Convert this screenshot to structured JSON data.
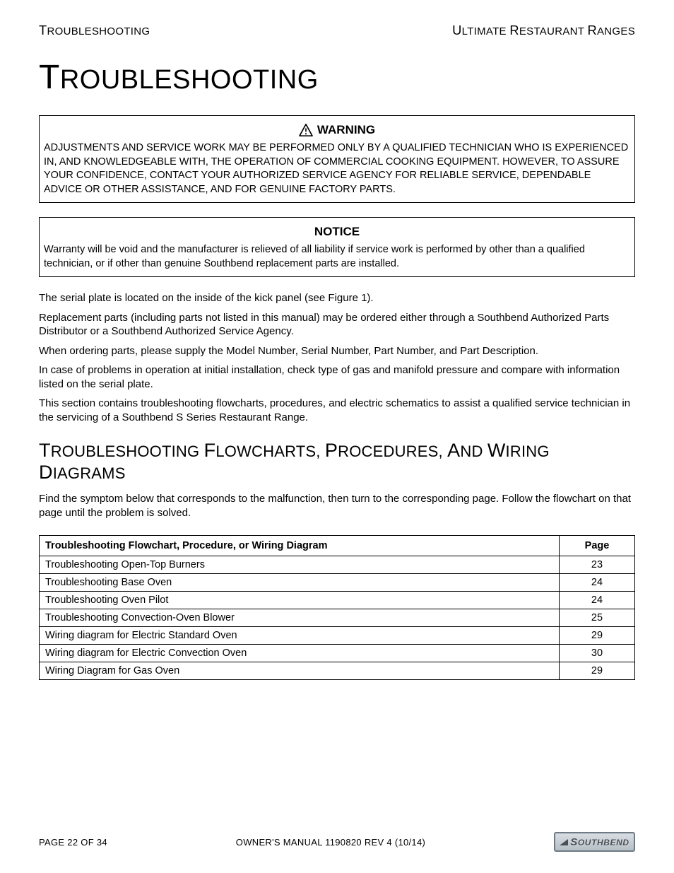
{
  "header": {
    "left": "TROUBLESHOOTING",
    "right": "ULTIMATE RESTAURANT RANGES"
  },
  "title": "TROUBLESHOOTING",
  "warning_box": {
    "title": "WARNING",
    "body": "ADJUSTMENTS AND SERVICE WORK MAY BE PERFORMED ONLY BY A QUALIFIED TECHNICIAN WHO IS EXPERIENCED IN, AND KNOWLEDGEABLE WITH, THE OPERATION OF COMMERCIAL COOKING EQUIPMENT. HOWEVER, TO ASSURE YOUR CONFIDENCE, CONTACT YOUR AUTHORIZED SERVICE AGENCY FOR RELIABLE SERVICE, DEPENDABLE ADVICE OR OTHER ASSISTANCE, AND FOR GENUINE FACTORY PARTS."
  },
  "notice_box": {
    "title": "NOTICE",
    "body": "Warranty will be void and the manufacturer is relieved of all liability if service work is performed by other than a qualified technician, or if other than genuine Southbend replacement parts are installed."
  },
  "paragraphs": [
    "The serial plate is located on the inside of the kick panel (see Figure 1).",
    "Replacement parts (including parts not listed in this manual) may be ordered either through a Southbend Authorized Parts Distributor or a Southbend Authorized Service Agency.",
    "When ordering parts, please supply the Model Number, Serial Number, Part Number, and Part Description.",
    "In case of problems in operation at initial installation, check type of gas and manifold pressure and compare with information listed on the serial plate.",
    "This section contains troubleshooting flowcharts, procedures, and electric schematics to assist a qualified service technician in the servicing of a Southbend S Series Restaurant Range."
  ],
  "section2": {
    "title_words": [
      "TROUBLESHOOTING",
      "FLOWCHARTS,",
      "PROCEDURES,",
      "AND",
      "WIRING",
      "DIAGRAMS"
    ],
    "intro": "Find the symptom below that corresponds to the malfunction, then turn to the corresponding page. Follow the flowchart on that page until the problem is solved."
  },
  "table": {
    "col1": "Troubleshooting Flowchart, Procedure, or Wiring Diagram",
    "col2": "Page",
    "rows": [
      {
        "label": "Troubleshooting Open-Top Burners",
        "page": "23"
      },
      {
        "label": "Troubleshooting Base Oven",
        "page": "24"
      },
      {
        "label": "Troubleshooting Oven Pilot",
        "page": "24"
      },
      {
        "label": "Troubleshooting Convection-Oven Blower",
        "page": "25"
      },
      {
        "label": "Wiring diagram for Electric Standard Oven",
        "page": "29"
      },
      {
        "label": "Wiring diagram for Electric Convection Oven",
        "page": "30"
      },
      {
        "label": "Wiring Diagram for Gas Oven",
        "page": "29"
      }
    ]
  },
  "footer": {
    "page_prefix": "PAGE",
    "page_current": "22",
    "page_mid": "OF",
    "page_total": "34",
    "center": "OWNER'S MANUAL 1190820 REV 4 (10/14)",
    "logo": "SOUTHBEND"
  },
  "colors": {
    "logo_border": "#6e7a84",
    "logo_bg_top": "#d9dee3",
    "logo_bg_bot": "#b6bfc7",
    "logo_text": "#4a4f55"
  }
}
